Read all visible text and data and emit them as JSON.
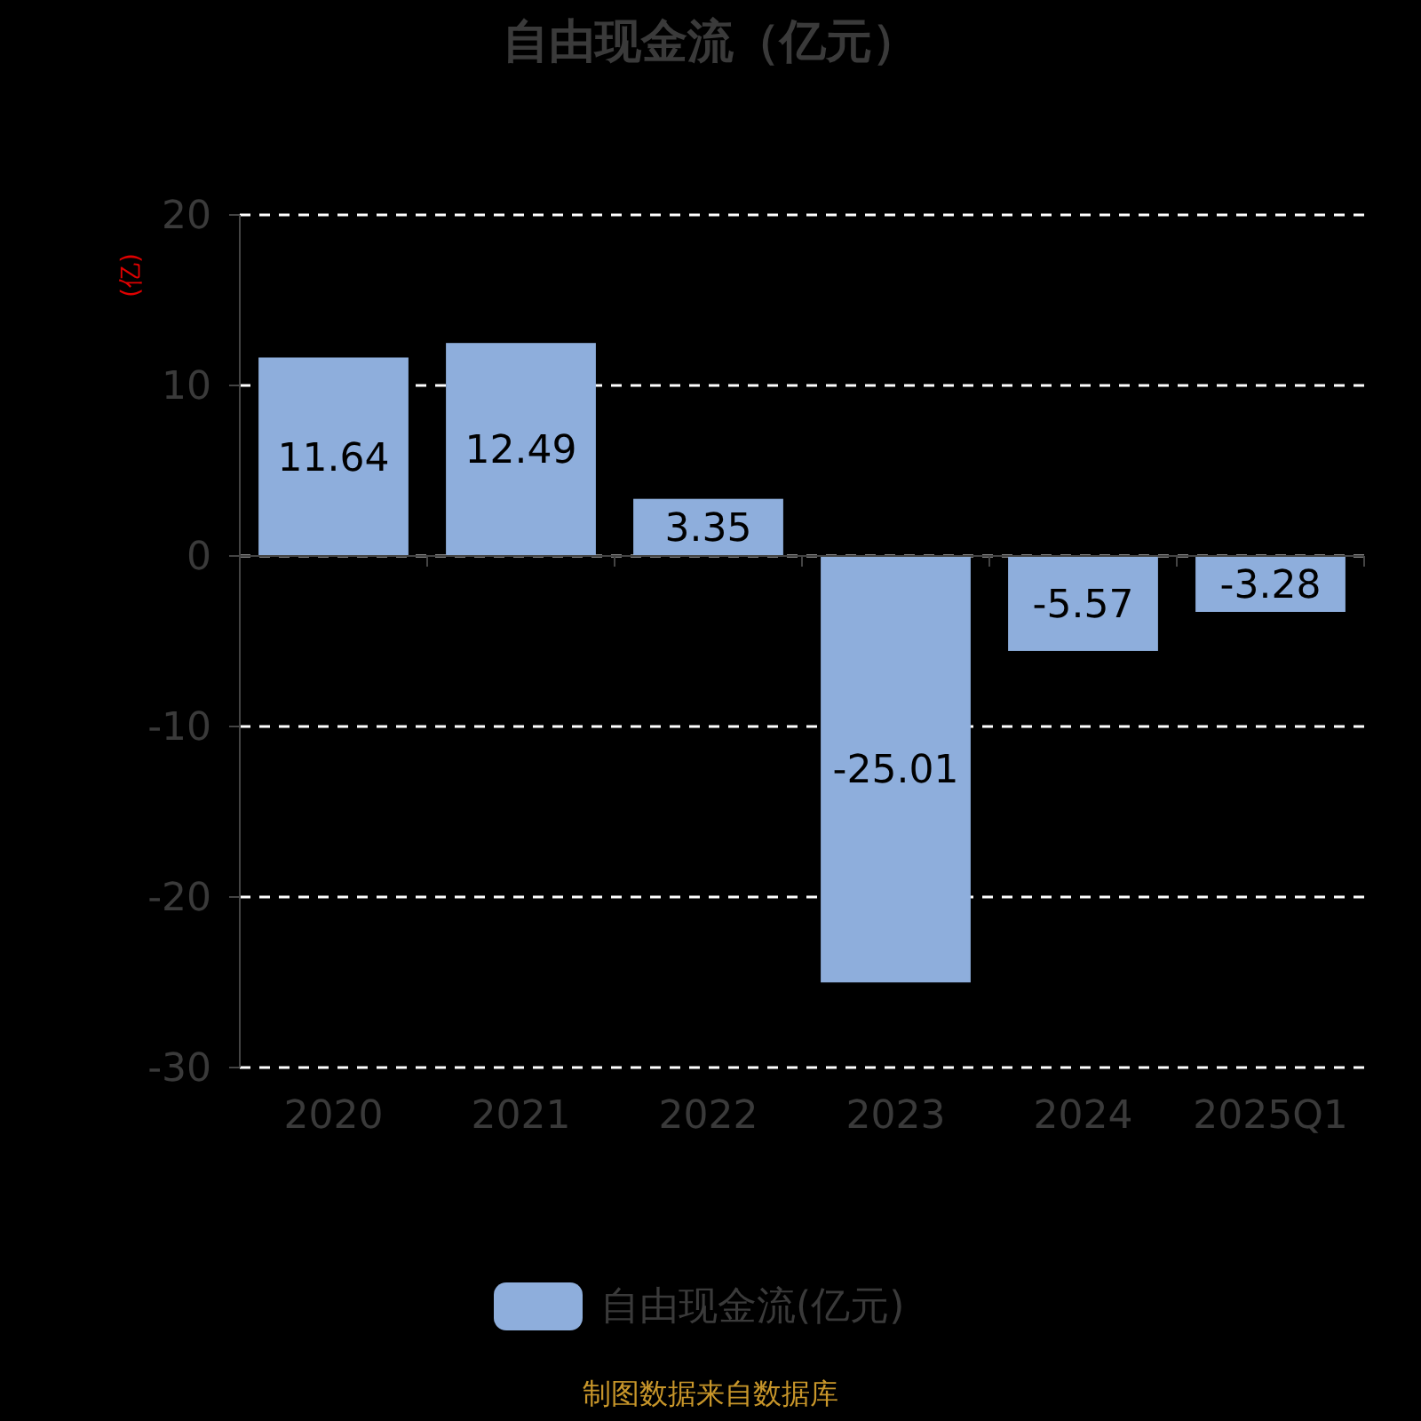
{
  "chart_data": {
    "type": "bar",
    "title": "自由现金流（亿元）",
    "ylabel": "(亿)",
    "categories": [
      "2020",
      "2021",
      "2022",
      "2023",
      "2024",
      "2025Q1"
    ],
    "series": [
      {
        "name": "自由现金流(亿元)",
        "color": "#8eaedc",
        "values": [
          11.64,
          12.49,
          3.35,
          -25.01,
          -5.57,
          -3.28
        ]
      }
    ],
    "ylim": [
      -30,
      20
    ],
    "yticks": [
      -30,
      -20,
      -10,
      0,
      10,
      20
    ],
    "grid": "y",
    "legend": "bottom",
    "data_labels": true,
    "annotations": [
      "制图数据来自数据库"
    ]
  }
}
